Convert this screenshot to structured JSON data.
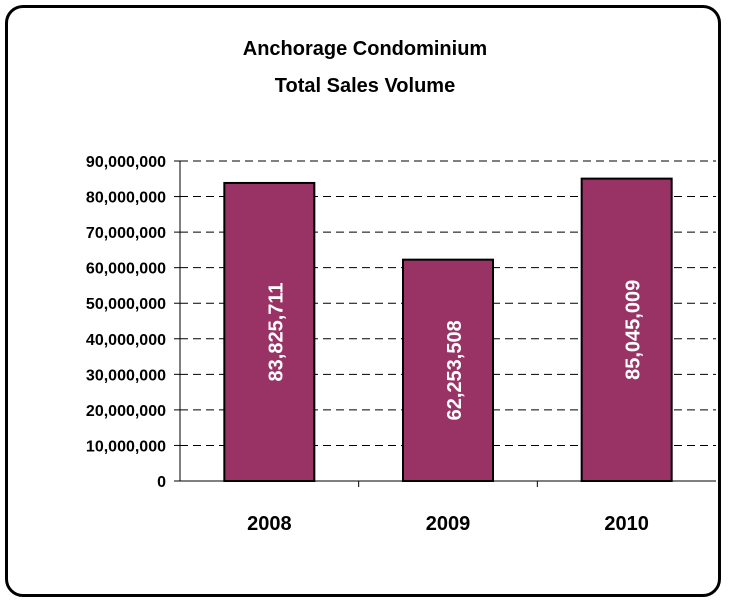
{
  "chart_data": {
    "type": "bar",
    "title_line1": "Anchorage Condominium",
    "title_line2": "Total Sales Volume",
    "categories": [
      "2008",
      "2009",
      "2010"
    ],
    "values": [
      83825711,
      62253508,
      85045009
    ],
    "data_labels": [
      "83,825,711",
      "62,253,508",
      "85,045,009"
    ],
    "ylim": [
      0,
      90000000
    ],
    "y_ticks": [
      0,
      10000000,
      20000000,
      30000000,
      40000000,
      50000000,
      60000000,
      70000000,
      80000000,
      90000000
    ],
    "y_tick_labels": [
      "0",
      "10,000,000",
      "20,000,000",
      "30,000,000",
      "40,000,000",
      "50,000,000",
      "60,000,000",
      "70,000,000",
      "80,000,000",
      "90,000,000"
    ],
    "grid": "dashed horizontal",
    "bar_color": "#993366"
  }
}
